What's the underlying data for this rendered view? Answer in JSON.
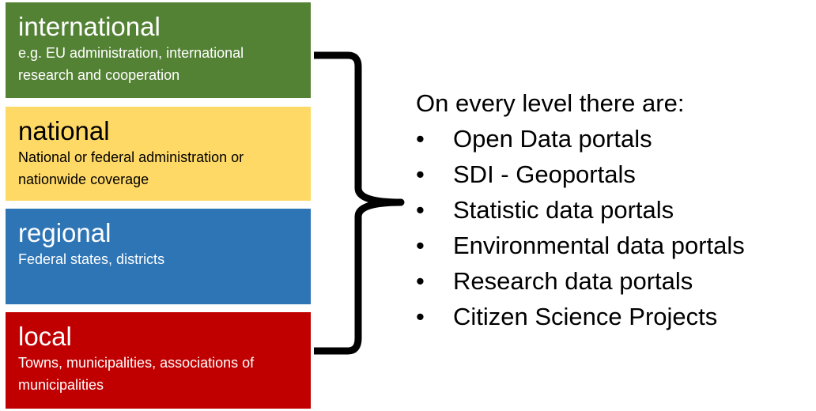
{
  "levels": [
    {
      "title": "international",
      "description": "e.g. EU administration, international research and cooperation",
      "color": "#548235"
    },
    {
      "title": "national",
      "description": "National or federal administration or nationwide coverage",
      "color": "#ffd966"
    },
    {
      "title": "regional",
      "description": "Federal states, districts",
      "color": "#2e75b6"
    },
    {
      "title": "local",
      "description": "Towns, municipalities, associations of municipalities",
      "color": "#c00000"
    }
  ],
  "summary": {
    "heading": "On every level there are:",
    "bullet": "•",
    "items": [
      "Open Data portals",
      "SDI - Geoportals",
      "Statistic data portals",
      "Environmental data portals",
      "Research data portals",
      "Citizen Science Projects"
    ]
  }
}
